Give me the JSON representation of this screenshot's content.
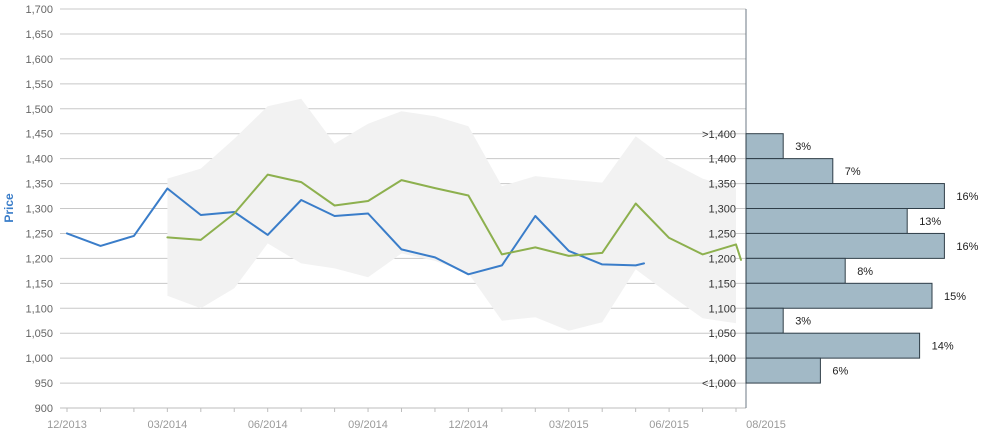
{
  "chart_data": {
    "type": "line",
    "title": "",
    "ylabel": "Price",
    "xlabel": "",
    "ylim": [
      900,
      1700
    ],
    "yticks": [
      900,
      950,
      1000,
      1050,
      1100,
      1150,
      1200,
      1250,
      1300,
      1350,
      1400,
      1450,
      1500,
      1550,
      1600,
      1650,
      1700
    ],
    "ytick_labels": [
      "900",
      "950",
      "1,000",
      "1,050",
      "1,100",
      "1,150",
      "1,200",
      "1,250",
      "1,300",
      "1,350",
      "1,400",
      "1,450",
      "1,500",
      "1,550",
      "1,600",
      "1,650",
      "1,700"
    ],
    "x_tick_labels": [
      "12/2013",
      "03/2014",
      "06/2014",
      "09/2014",
      "12/2014",
      "03/2015",
      "06/2015",
      "08/2015"
    ],
    "x_tick_months": [
      0,
      3,
      6,
      9,
      12,
      15,
      18,
      20
    ],
    "grid": true,
    "colors": {
      "actual": "#3a7dc9",
      "forecast": "#8db04e",
      "band": "#f2f2f2",
      "histogram": "#a2b9c6",
      "histogram_edge": "#2f3e48",
      "grid": "#c8c8c8",
      "axis_text": "#666666",
      "ylabel": "#3a7dc9"
    },
    "series": [
      {
        "key": "actual",
        "x": [
          0,
          1,
          2,
          3,
          4,
          5,
          6,
          7,
          8,
          9,
          10,
          11,
          12,
          13,
          14,
          15,
          16,
          17,
          17.25
        ],
        "values": [
          1250,
          1225,
          1245,
          1340,
          1287,
          1293,
          1247,
          1317,
          1285,
          1290,
          1218,
          1202,
          1168,
          1186,
          1285,
          1215,
          1188,
          1186,
          1190
        ]
      },
      {
        "key": "forecast",
        "x": [
          3,
          4,
          5,
          6,
          7,
          8,
          9,
          10,
          11,
          12,
          13,
          14,
          15,
          16,
          17,
          18,
          19,
          20,
          20.15
        ],
        "values": [
          1242,
          1237,
          1290,
          1368,
          1353,
          1306,
          1315,
          1357,
          1341,
          1326,
          1208,
          1222,
          1205,
          1211,
          1310,
          1241,
          1208,
          1228,
          1197
        ]
      }
    ],
    "band": {
      "x": [
        3,
        4,
        5,
        6,
        7,
        8,
        9,
        10,
        11,
        12,
        13,
        14,
        15,
        16,
        17,
        18,
        19,
        20
      ],
      "upper": [
        1360,
        1380,
        1440,
        1505,
        1520,
        1430,
        1470,
        1495,
        1485,
        1465,
        1345,
        1365,
        1358,
        1352,
        1445,
        1395,
        1360,
        1340
      ],
      "lower": [
        1125,
        1100,
        1140,
        1230,
        1190,
        1180,
        1162,
        1210,
        1195,
        1170,
        1075,
        1082,
        1055,
        1072,
        1178,
        1128,
        1080,
        1070
      ]
    },
    "histogram": {
      "bins": [
        ">1,400",
        "1,400",
        "1,350",
        "1,300",
        "1,250",
        "1,200",
        "1,150",
        "1,100",
        "1,050",
        "1,000",
        "<1,000"
      ],
      "bin_values": [
        1425,
        1375,
        1325,
        1275,
        1225,
        1175,
        1125,
        1075,
        1025,
        975
      ],
      "percent_values": [
        3,
        7,
        16,
        13,
        16,
        8,
        15,
        3,
        14,
        6
      ],
      "percent_labels": [
        "3%",
        "7%",
        "16%",
        "13%",
        "16%",
        "8%",
        "15%",
        "3%",
        "14%",
        "6%"
      ]
    }
  }
}
